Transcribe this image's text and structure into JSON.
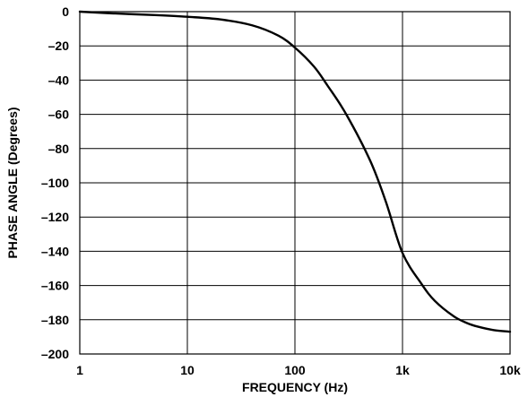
{
  "chart_data": {
    "type": "line",
    "xlabel": "FREQUENCY (Hz)",
    "ylabel": "PHASE ANGLE (Degrees)",
    "x_scale": "log",
    "xlim": [
      1,
      10000
    ],
    "ylim": [
      -200,
      0
    ],
    "grid": true,
    "x_ticks": [
      {
        "value": 1,
        "label": "1"
      },
      {
        "value": 10,
        "label": "10"
      },
      {
        "value": 100,
        "label": "100"
      },
      {
        "value": 1000,
        "label": "1k"
      },
      {
        "value": 10000,
        "label": "10k"
      }
    ],
    "y_ticks": [
      {
        "value": 0,
        "label": "0"
      },
      {
        "value": -20,
        "label": "–20"
      },
      {
        "value": -40,
        "label": "–40"
      },
      {
        "value": -60,
        "label": "–60"
      },
      {
        "value": -80,
        "label": "–80"
      },
      {
        "value": -100,
        "label": "–100"
      },
      {
        "value": -120,
        "label": "–120"
      },
      {
        "value": -140,
        "label": "–140"
      },
      {
        "value": -160,
        "label": "–160"
      },
      {
        "value": -180,
        "label": "–180"
      },
      {
        "value": -200,
        "label": "–200"
      }
    ],
    "series": [
      {
        "x": [
          1,
          2,
          5,
          10,
          20,
          40,
          70,
          100,
          150,
          200,
          300,
          500,
          700,
          1000,
          1500,
          2000,
          3000,
          4000,
          5000,
          7000,
          10000
        ],
        "y": [
          0,
          -1,
          -2,
          -3,
          -4.5,
          -8,
          -14,
          -21,
          -32,
          -43,
          -60,
          -87,
          -111,
          -141,
          -159,
          -169,
          -178,
          -182,
          -184,
          -186,
          -187
        ]
      }
    ]
  }
}
